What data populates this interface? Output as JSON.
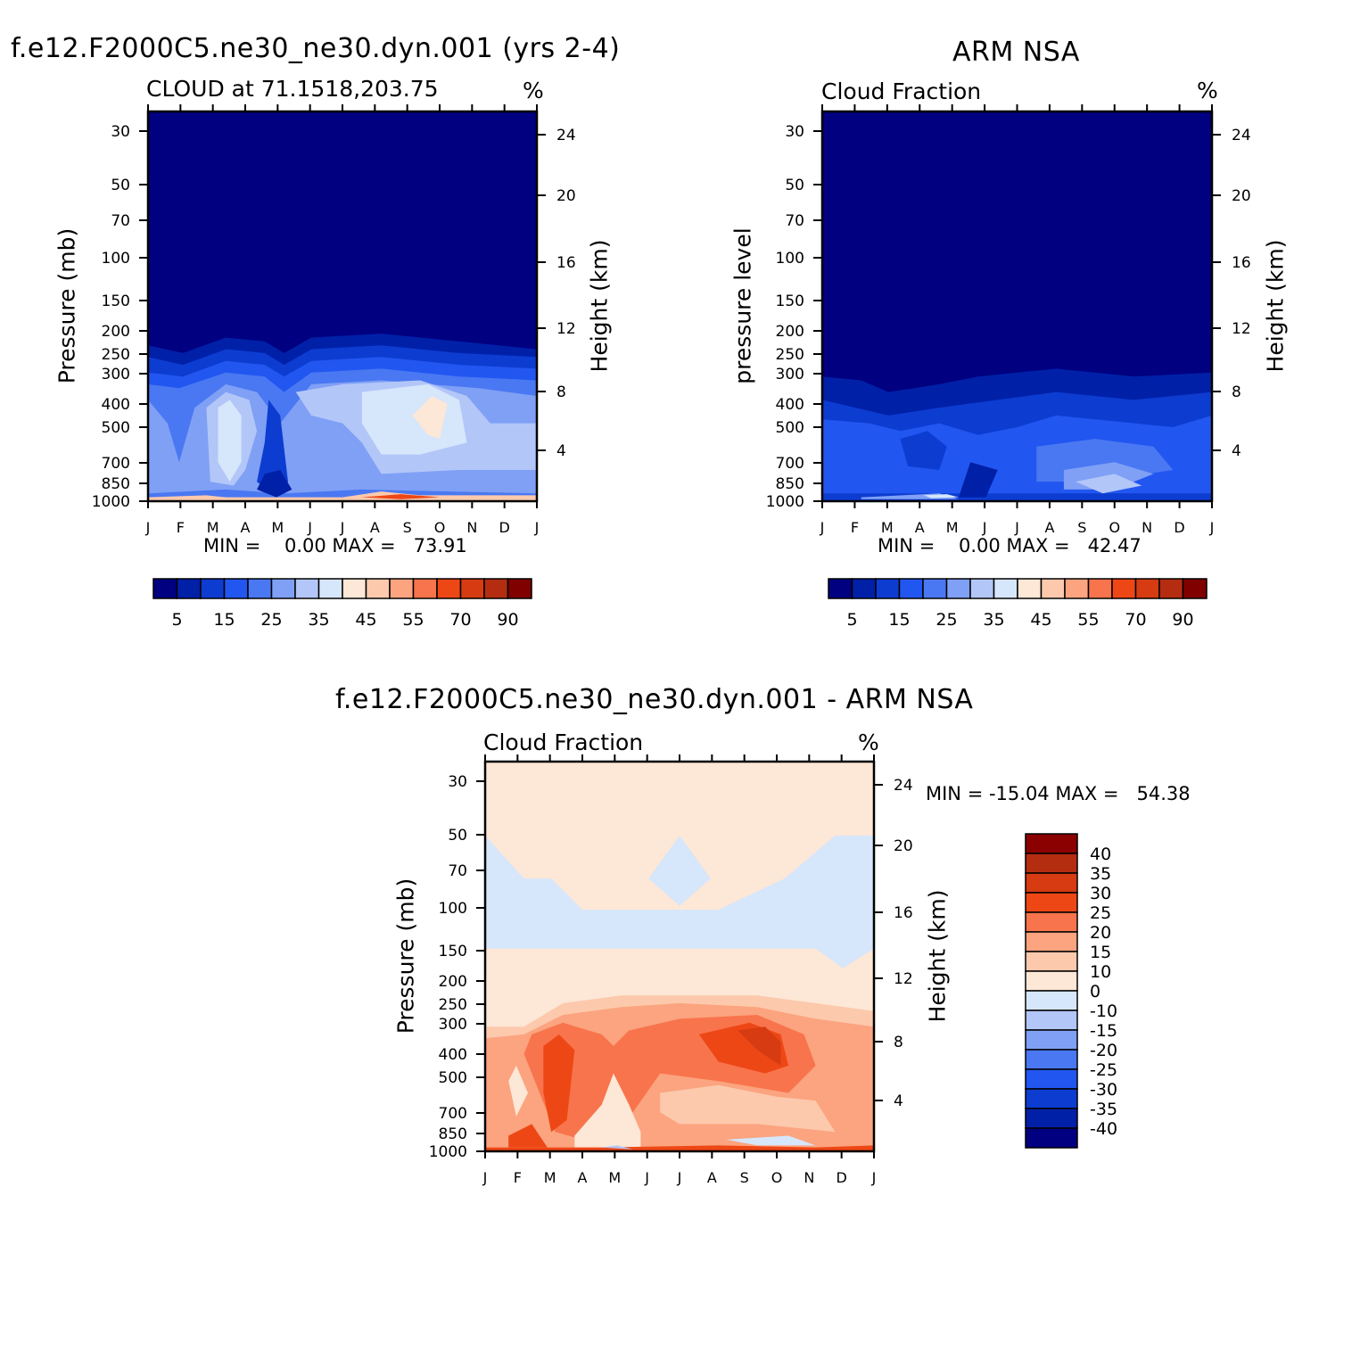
{
  "colors": {
    "abs_scale": [
      "#000080",
      "#0020a8",
      "#0d3cd1",
      "#2256f0",
      "#4a78f2",
      "#7fa0f5",
      "#b3c6f8",
      "#d6e6fb",
      "#fde7d6",
      "#fcc9ad",
      "#fba47f",
      "#f8744c",
      "#ee4716",
      "#d63b12",
      "#b52d10",
      "#800000"
    ],
    "diff_scale": [
      "#000080",
      "#0020a8",
      "#0d3cd1",
      "#2256f0",
      "#4a78f2",
      "#7fa0f5",
      "#b3c6f8",
      "#d6e6fb",
      "#fde7d6",
      "#fcc9ad",
      "#fba47f",
      "#f8744c",
      "#ee4716",
      "#d63b12",
      "#b52d10",
      "#8b0000"
    ]
  },
  "panel_model": {
    "title": "f.e12.F2000C5.ne30_ne30.dyn.001 (yrs 2-4)",
    "left_label": "CLOUD at 71.1518,203.75",
    "units": "%",
    "ylabel": "Pressure (mb)",
    "y2label": "Height (km)",
    "minmax": "MIN =    0.00 MAX =   73.91"
  },
  "panel_obs": {
    "title": "ARM NSA",
    "left_label": "Cloud Fraction",
    "units": "%",
    "ylabel": "pressure level",
    "y2label": "Height (km)",
    "minmax": "MIN =    0.00 MAX =   42.47"
  },
  "panel_diff": {
    "title": "f.e12.F2000C5.ne30_ne30.dyn.001 - ARM NSA",
    "left_label": "Cloud Fraction",
    "units": "%",
    "ylabel": "Pressure (mb)",
    "y2label": "Height (km)",
    "minmax": "MIN = -15.04 MAX =   54.38"
  },
  "chart_data": [
    {
      "type": "heatmap",
      "title": "f.e12.F2000C5.ne30_ne30.dyn.001 (yrs 2-4)",
      "subtitle": "CLOUD at 71.1518,203.75",
      "xlabel": "",
      "ylabel": "Pressure (mb)",
      "y2label": "Height (km)",
      "x_ticks": [
        "J",
        "F",
        "M",
        "A",
        "M",
        "J",
        "J",
        "A",
        "S",
        "O",
        "N",
        "D",
        "J"
      ],
      "y_ticks": [
        30,
        50,
        70,
        100,
        150,
        200,
        250,
        300,
        400,
        500,
        700,
        850,
        1000
      ],
      "y2_ticks": [
        24,
        20,
        16,
        12,
        8,
        4
      ],
      "y_scale": "log",
      "min": 0.0,
      "max": 73.91,
      "colorbar_labels": [
        "5",
        "15",
        "25",
        "35",
        "45",
        "55",
        "70",
        "90"
      ],
      "colorbar_levels": [
        5,
        10,
        15,
        20,
        25,
        30,
        35,
        40,
        45,
        50,
        55,
        60,
        70,
        80,
        90
      ]
    },
    {
      "type": "heatmap",
      "title": "ARM NSA",
      "subtitle": "Cloud Fraction",
      "xlabel": "",
      "ylabel": "pressure level",
      "y2label": "Height (km)",
      "x_ticks": [
        "J",
        "F",
        "M",
        "A",
        "M",
        "J",
        "J",
        "A",
        "S",
        "O",
        "N",
        "D",
        "J"
      ],
      "y_ticks": [
        30,
        50,
        70,
        100,
        150,
        200,
        250,
        300,
        400,
        500,
        700,
        850,
        1000
      ],
      "y2_ticks": [
        24,
        20,
        16,
        12,
        8,
        4
      ],
      "y_scale": "log",
      "min": 0.0,
      "max": 42.47,
      "colorbar_labels": [
        "5",
        "15",
        "25",
        "35",
        "45",
        "55",
        "70",
        "90"
      ],
      "colorbar_levels": [
        5,
        10,
        15,
        20,
        25,
        30,
        35,
        40,
        45,
        50,
        55,
        60,
        70,
        80,
        90
      ]
    },
    {
      "type": "heatmap",
      "title": "f.e12.F2000C5.ne30_ne30.dyn.001 - ARM NSA",
      "subtitle": "Cloud Fraction",
      "xlabel": "",
      "ylabel": "Pressure (mb)",
      "y2label": "Height (km)",
      "x_ticks": [
        "J",
        "F",
        "M",
        "A",
        "M",
        "J",
        "J",
        "A",
        "S",
        "O",
        "N",
        "D",
        "J"
      ],
      "y_ticks": [
        30,
        50,
        70,
        100,
        150,
        200,
        250,
        300,
        400,
        500,
        700,
        850,
        1000
      ],
      "y2_ticks": [
        24,
        20,
        16,
        12,
        8,
        4
      ],
      "y_scale": "log",
      "min": -15.04,
      "max": 54.38,
      "colorbar_labels": [
        "40",
        "35",
        "30",
        "25",
        "20",
        "15",
        "10",
        "0",
        "-10",
        "-15",
        "-20",
        "-25",
        "-30",
        "-35",
        "-40"
      ],
      "colorbar_levels": [
        40,
        35,
        30,
        25,
        20,
        15,
        10,
        0,
        -10,
        -15,
        -20,
        -25,
        -30,
        -35,
        -40
      ]
    }
  ]
}
